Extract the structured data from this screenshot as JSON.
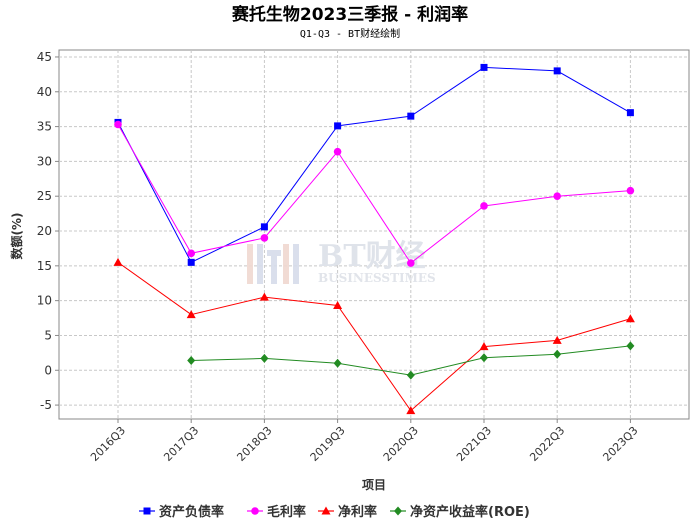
{
  "chart_data": {
    "type": "line",
    "title": "赛托生物2023三季报 - 利润率",
    "subtitle": "Q1-Q3 - BT财经绘制",
    "xlabel": "项目",
    "ylabel": "数额(%)",
    "categories": [
      "2016Q3",
      "2017Q3",
      "2018Q3",
      "2019Q3",
      "2020Q3",
      "2021Q3",
      "2022Q3",
      "2023Q3"
    ],
    "ylim": [
      -7,
      46
    ],
    "yticks": [
      -5,
      0,
      5,
      10,
      15,
      20,
      25,
      30,
      35,
      40,
      45
    ],
    "grid": true,
    "legend_position": "bottom",
    "series": [
      {
        "name": "资产负债率",
        "color": "#0000ff",
        "marker": "square",
        "values": [
          35.6,
          15.5,
          20.6,
          35.1,
          36.5,
          43.5,
          43.0,
          37.0
        ]
      },
      {
        "name": "毛利率",
        "color": "#ff00ff",
        "marker": "circle",
        "values": [
          35.3,
          16.8,
          19.0,
          31.4,
          15.4,
          23.6,
          25.0,
          25.8
        ]
      },
      {
        "name": "净利率",
        "color": "#ff0000",
        "marker": "triangle",
        "values": [
          15.5,
          8.0,
          10.5,
          9.3,
          -5.8,
          3.4,
          4.3,
          7.4
        ]
      },
      {
        "name": "净资产收益率(ROE)",
        "color": "#228b22",
        "marker": "diamond",
        "values": [
          null,
          1.4,
          1.7,
          1.0,
          -0.7,
          1.8,
          2.3,
          3.5
        ]
      }
    ],
    "watermark": {
      "main": "BT财经",
      "sub": "BUSINESSTIMES"
    }
  }
}
